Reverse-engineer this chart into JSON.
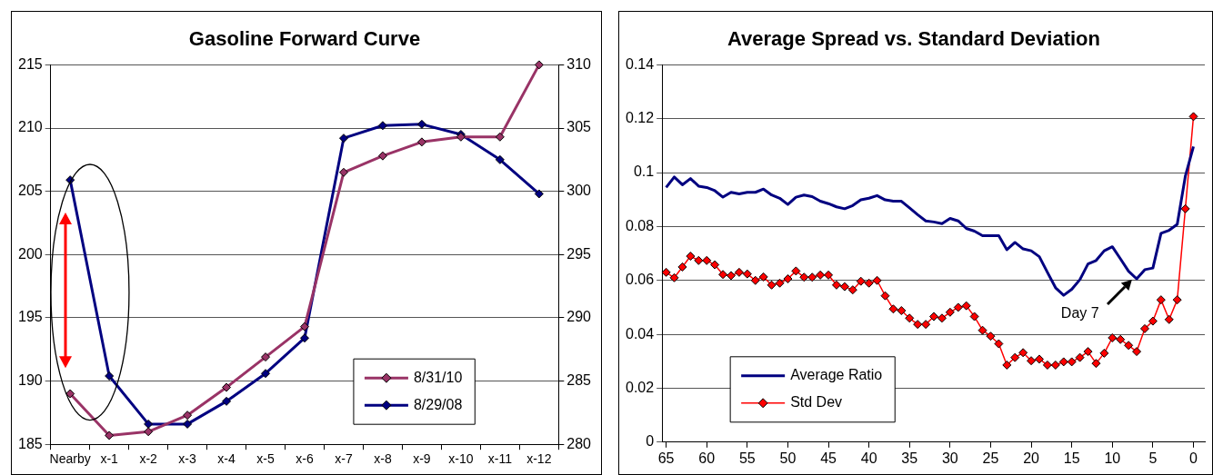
{
  "chart_data": [
    {
      "type": "line",
      "title": "Gasoline Forward Curve",
      "categories": [
        "Nearby",
        "x-1",
        "x-2",
        "x-3",
        "x-4",
        "x-5",
        "x-6",
        "x-7",
        "x-8",
        "x-9",
        "x-10",
        "x-11",
        "x-12"
      ],
      "series": [
        {
          "name": "8/31/10",
          "color": "#993366",
          "marker": "diamond",
          "values": [
            189,
            185.7,
            186,
            187.3,
            189.5,
            191.9,
            194.3,
            206.5,
            207.8,
            208.9,
            209.3,
            209.3,
            215
          ]
        },
        {
          "name": "8/29/08",
          "color": "#000080",
          "marker": "diamond",
          "axis": "y2",
          "values": [
            300.9,
            285.4,
            281.6,
            281.6,
            283.4,
            285.6,
            288.4,
            304.2,
            305.2,
            305.3,
            304.5,
            302.5,
            299.8
          ]
        }
      ],
      "ylim": [
        185,
        215
      ],
      "yticks": [
        185,
        190,
        195,
        200,
        205,
        210,
        215
      ],
      "y2lim": [
        280,
        310
      ],
      "y2ticks": [
        280,
        285,
        290,
        295,
        300,
        305,
        310
      ],
      "grid": "y",
      "legend": "bottom right"
    },
    {
      "type": "line",
      "title": "Average Spread vs. Standard Deviation",
      "x": [
        65,
        64,
        63,
        62,
        61,
        60,
        59,
        58,
        57,
        56,
        55,
        54,
        53,
        52,
        51,
        50,
        49,
        48,
        47,
        46,
        45,
        44,
        43,
        42,
        41,
        40,
        39,
        38,
        37,
        36,
        35,
        34,
        33,
        32,
        31,
        30,
        29,
        28,
        27,
        26,
        25,
        24,
        23,
        22,
        21,
        20,
        19,
        18,
        17,
        16,
        15,
        14,
        13,
        12,
        11,
        10,
        9,
        8,
        7,
        6,
        5,
        4,
        3,
        2,
        1,
        0
      ],
      "series": [
        {
          "name": "Average Ratio",
          "color": "#000080",
          "marker": "none",
          "values": [
            0.0945,
            0.0984,
            0.0955,
            0.0978,
            0.095,
            0.0945,
            0.0933,
            0.0909,
            0.0927,
            0.0921,
            0.0927,
            0.0927,
            0.0939,
            0.0917,
            0.0905,
            0.0882,
            0.0909,
            0.0917,
            0.0911,
            0.0894,
            0.0885,
            0.0873,
            0.0866,
            0.0878,
            0.0899,
            0.0905,
            0.0915,
            0.0899,
            0.0894,
            0.0894,
            0.0869,
            0.0844,
            0.0821,
            0.0817,
            0.0811,
            0.083,
            0.0821,
            0.0793,
            0.0783,
            0.0766,
            0.0766,
            0.0766,
            0.0714,
            0.0741,
            0.0717,
            0.071,
            0.0688,
            0.063,
            0.0573,
            0.0545,
            0.0567,
            0.0603,
            0.0661,
            0.0674,
            0.071,
            0.0725,
            0.068,
            0.0634,
            0.0606,
            0.064,
            0.0646,
            0.0775,
            0.0786,
            0.0808,
            0.0987,
            0.1097
          ]
        },
        {
          "name": "Std Dev",
          "color": "#ff0000",
          "marker": "diamond",
          "values": [
            0.063,
            0.061,
            0.065,
            0.069,
            0.0674,
            0.0674,
            0.0658,
            0.0622,
            0.0618,
            0.063,
            0.0624,
            0.06,
            0.0613,
            0.0583,
            0.059,
            0.0606,
            0.0635,
            0.0612,
            0.0612,
            0.062,
            0.062,
            0.0583,
            0.0577,
            0.0565,
            0.0597,
            0.059,
            0.06,
            0.0543,
            0.0494,
            0.0488,
            0.046,
            0.0437,
            0.0437,
            0.0466,
            0.046,
            0.0482,
            0.05,
            0.0506,
            0.0466,
            0.0415,
            0.0393,
            0.0365,
            0.0286,
            0.0314,
            0.0332,
            0.0302,
            0.0308,
            0.0286,
            0.0286,
            0.0298,
            0.0298,
            0.0314,
            0.0336,
            0.0292,
            0.033,
            0.0387,
            0.0381,
            0.0359,
            0.0336,
            0.0421,
            0.0449,
            0.0528,
            0.0455,
            0.0528,
            0.0866,
            0.1208
          ]
        }
      ],
      "xlim": [
        65.5,
        -1.4
      ],
      "xticks": [
        65,
        60,
        55,
        50,
        45,
        40,
        35,
        30,
        25,
        20,
        15,
        10,
        5,
        0
      ],
      "ylim": [
        0,
        0.14
      ],
      "yticks": [
        0,
        0.02,
        0.04,
        0.06,
        0.08,
        0.1,
        0.12,
        0.14
      ],
      "grid": "y",
      "legend": "bottom left",
      "annotations": [
        "Day 7"
      ]
    }
  ]
}
